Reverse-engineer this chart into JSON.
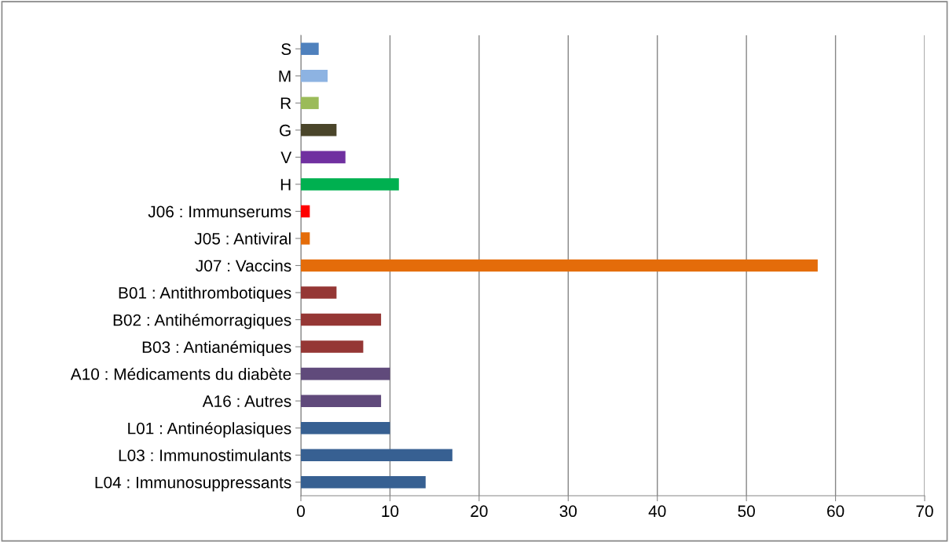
{
  "chart_data": {
    "type": "bar",
    "orientation": "horizontal",
    "categories": [
      "S",
      "M",
      "R",
      "G",
      "V",
      "H",
      "J06 : Immunserums",
      "J05 : Antiviral",
      "J07 : Vaccins",
      "B01 : Antithrombotiques",
      "B02 : Antihémorragiques",
      "B03 : Antianémiques",
      "A10 : Médicaments du diabète",
      "A16 : Autres",
      "L01 : Antinéoplasiques",
      "L03 : Immunostimulants",
      "L04 : Immunosuppressants"
    ],
    "values": [
      2,
      3,
      2,
      4,
      5,
      11,
      1,
      1,
      58,
      4,
      9,
      7,
      10,
      9,
      10,
      17,
      14
    ],
    "colors": [
      "#4f81bd",
      "#8db3e2",
      "#9bbb59",
      "#4a452a",
      "#7030a0",
      "#00b050",
      "#ff0000",
      "#e46c0a",
      "#e46c0a",
      "#953735",
      "#953735",
      "#953735",
      "#604a7b",
      "#604a7b",
      "#376092",
      "#376092",
      "#376092"
    ],
    "xlim": [
      0,
      70
    ],
    "xticks": [
      0,
      10,
      20,
      30,
      40,
      50,
      60,
      70
    ],
    "grid": "x",
    "legend": false
  }
}
